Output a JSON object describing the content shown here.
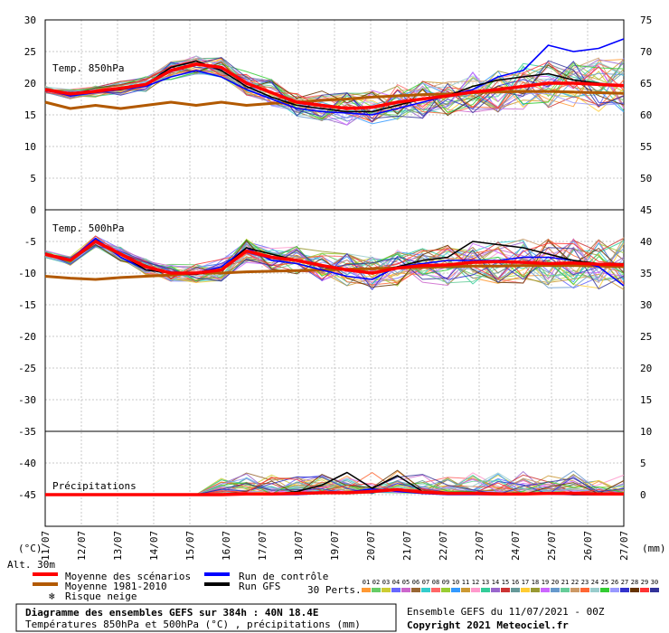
{
  "chart_data": {
    "type": "line",
    "title": "Diagramme des ensembles GEFS sur 384h : 40N 18.4E",
    "subtitle": "Températures 850hPa et 500hPa (°C) , précipitations (mm)",
    "x_ticks": [
      "11/07",
      "12/07",
      "13/07",
      "14/07",
      "15/07",
      "16/07",
      "17/07",
      "18/07",
      "19/07",
      "20/07",
      "21/07",
      "22/07",
      "23/07",
      "24/07",
      "25/07",
      "26/07",
      "27/07"
    ],
    "left_axis": {
      "unit_label": "(°C)",
      "ticks": [
        30,
        25,
        20,
        15,
        10,
        5,
        0,
        -5,
        -10,
        -15,
        -20,
        -25,
        -30,
        -35,
        -40,
        -45
      ],
      "ylim": [
        -50,
        30
      ]
    },
    "right_axis": {
      "unit_label": "(mm)",
      "ticks": [
        75,
        70,
        65,
        60,
        55,
        50,
        45,
        40,
        35,
        30,
        25,
        20,
        15,
        10,
        5,
        0
      ]
    },
    "panels": [
      {
        "label": "Temp. 850hPa",
        "series": [
          {
            "name": "Moyenne des scénarios",
            "color": "#ff0000",
            "values": [
              19,
              18.3,
              18.7,
              19.2,
              19.8,
              22,
              23,
              22.5,
              20,
              18.5,
              17,
              16.5,
              16,
              16.2,
              17,
              17.5,
              18,
              18.6,
              19,
              19.5,
              20,
              20,
              19.8,
              19.6
            ]
          },
          {
            "name": "Moyenne 1981-2010",
            "color": "#b25900",
            "values": [
              17,
              16,
              16.5,
              16,
              16.5,
              17,
              16.5,
              17,
              16.5,
              16.8,
              17,
              17.3,
              17.5,
              17.8,
              18,
              18.2,
              18.3,
              18.5,
              18.6,
              18.7,
              18.7,
              18.6,
              18.5,
              18.4
            ]
          },
          {
            "name": "Run de contrôle",
            "color": "#0000ff",
            "values": [
              19,
              18,
              18.5,
              19,
              19.5,
              21,
              22,
              21,
              19,
              17.5,
              16,
              15.5,
              15.3,
              15,
              16,
              17,
              18,
              19,
              21,
              22,
              26,
              25,
              25.5,
              27
            ]
          },
          {
            "name": "Run GFS",
            "color": "#000000",
            "values": [
              18.8,
              18.5,
              18.8,
              19,
              19.8,
              22.5,
              23.5,
              22,
              19.5,
              17.8,
              16.5,
              16,
              15.5,
              15.5,
              16.5,
              17.5,
              18,
              19.5,
              20.5,
              21,
              21.5,
              20.5,
              20,
              19.5
            ]
          }
        ]
      },
      {
        "label": "Temp. 500hPa",
        "series": [
          {
            "name": "Moyenne des scénarios",
            "color": "#ff0000",
            "values": [
              -7,
              -8,
              -5,
              -7,
              -9,
              -10,
              -10,
              -9.5,
              -6.5,
              -7.5,
              -8,
              -8.8,
              -9.5,
              -10,
              -9.2,
              -8.8,
              -8.7,
              -8.3,
              -8.2,
              -8.3,
              -8.5,
              -8.4,
              -8.6,
              -8.7
            ]
          },
          {
            "name": "Moyenne 1981-2010",
            "color": "#b25900",
            "values": [
              -10.5,
              -10.8,
              -11,
              -10.7,
              -10.5,
              -10.3,
              -10,
              -10,
              -9.8,
              -9.7,
              -9.6,
              -9.5,
              -9.4,
              -9.3,
              -9.2,
              -9.1,
              -9,
              -8.9,
              -8.9,
              -8.8,
              -8.8,
              -8.8,
              -8.9,
              -9
            ]
          },
          {
            "name": "Run de contrôle",
            "color": "#0000ff",
            "values": [
              -7,
              -8,
              -4.5,
              -7.5,
              -9.5,
              -10,
              -10,
              -9,
              -6,
              -8,
              -8.5,
              -9.5,
              -10.5,
              -11,
              -9,
              -8.5,
              -8,
              -8,
              -8,
              -7.5,
              -7.5,
              -8,
              -9,
              -12
            ]
          },
          {
            "name": "Run GFS",
            "color": "#000000",
            "values": [
              -7,
              -8,
              -5,
              -7,
              -9.5,
              -10,
              -10.2,
              -9.5,
              -6,
              -7,
              -8,
              -9,
              -9.5,
              -10,
              -9,
              -8,
              -7.5,
              -5,
              -5.5,
              -6,
              -7,
              -8,
              -8.5,
              -8.5
            ]
          }
        ]
      },
      {
        "label": "Précipitations",
        "series": [
          {
            "name": "Moyenne des scénarios",
            "color": "#ff0000",
            "values": [
              0,
              0,
              0,
              0,
              0,
              0,
              0,
              0,
              0.1,
              0.1,
              0.2,
              0.3,
              0.3,
              0.5,
              0.8,
              0.4,
              0.2,
              0.2,
              0.1,
              0.1,
              0.2,
              0.2,
              0.1,
              0.1
            ]
          },
          {
            "name": "Run de contrôle",
            "color": "#0000ff",
            "values": [
              0,
              0,
              0,
              0,
              0,
              0,
              0,
              0,
              0,
              0,
              0,
              0.2,
              0.4,
              0.9,
              0.5,
              0.2,
              0,
              0,
              0,
              0,
              0.1,
              0,
              0,
              0
            ]
          },
          {
            "name": "Run GFS",
            "color": "#000000",
            "values": [
              0,
              0,
              0,
              0,
              0,
              0,
              0,
              0,
              0,
              0,
              0.5,
              1.5,
              3.5,
              1,
              3,
              0.5,
              0.2,
              0.1,
              0,
              0,
              0.3,
              0,
              0,
              0
            ]
          }
        ]
      }
    ]
  },
  "legend": {
    "alt": "Alt. 30m",
    "items": [
      {
        "label": "Moyenne des scénarios",
        "color": "#ff0000"
      },
      {
        "label": "Moyenne 1981-2010",
        "color": "#b25900"
      },
      {
        "label": "Risque neige",
        "color": "#3aa0e0"
      },
      {
        "label": "Run de contrôle",
        "color": "#0000ff"
      },
      {
        "label": "Run GFS",
        "color": "#000000"
      }
    ],
    "perts_label": "30 Perts.",
    "perts": [
      "01",
      "02",
      "03",
      "04",
      "05",
      "06",
      "07",
      "08",
      "09",
      "10",
      "11",
      "12",
      "13",
      "14",
      "15",
      "16",
      "17",
      "18",
      "19",
      "20",
      "21",
      "22",
      "23",
      "24",
      "25",
      "26",
      "27",
      "28",
      "29",
      "30"
    ],
    "pert_colors": [
      "#ff9933",
      "#66cc66",
      "#cccc33",
      "#6666ff",
      "#cc66cc",
      "#996633",
      "#33cccc",
      "#ff6666",
      "#99cc33",
      "#3399ff",
      "#cc9933",
      "#ff99cc",
      "#33cc99",
      "#9966cc",
      "#cc3333",
      "#669999",
      "#ffcc33",
      "#999933",
      "#cc66ff",
      "#6699cc",
      "#66cc99",
      "#cc9966",
      "#ff6633",
      "#99cccc",
      "#33cc33",
      "#9999ff",
      "#3333cc",
      "#663300",
      "#ff3333",
      "#333399"
    ]
  },
  "footer": {
    "title": "Diagramme des ensembles GEFS sur 384h : 40N 18.4E",
    "subtitle": "Températures 850hPa et 500hPa (°C) , précipitations (mm)",
    "run_info": "Ensemble GEFS du 11/07/2021 - 00Z",
    "copyright": "Copyright 2021 Meteociel.fr"
  }
}
